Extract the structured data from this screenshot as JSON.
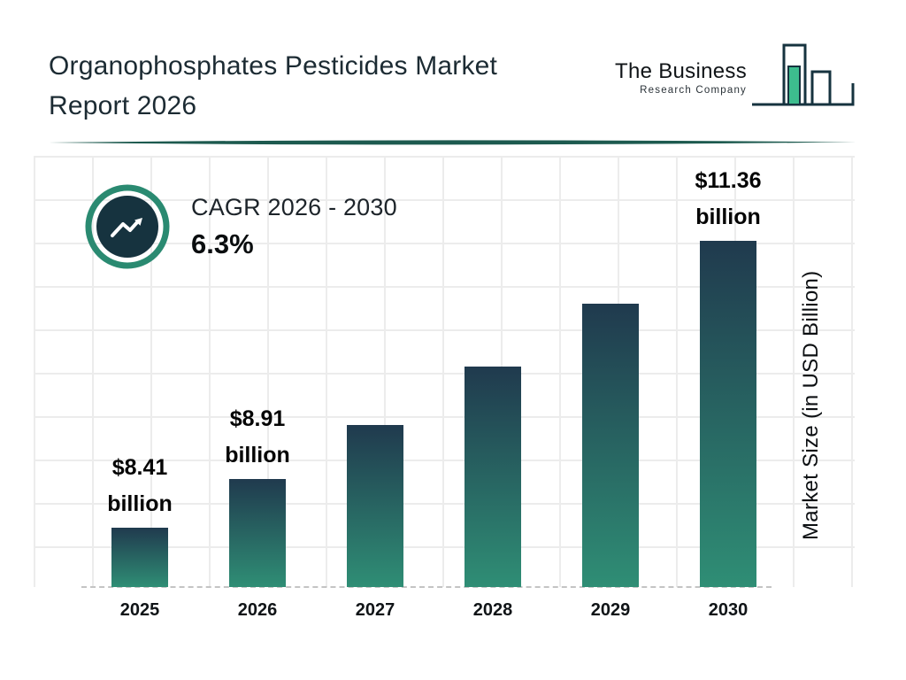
{
  "header": {
    "title_line1": "Organophosphates Pesticides Market",
    "title_line2": "Report 2026",
    "logo_line1": "The Business",
    "logo_line2": "Research Company"
  },
  "cagr": {
    "label": "CAGR 2026 - 2030",
    "value": "6.3%"
  },
  "chart_data": {
    "type": "bar",
    "title": "Organophosphates Pesticides Market Report 2026",
    "categories": [
      "2025",
      "2026",
      "2027",
      "2028",
      "2029",
      "2030"
    ],
    "values": [
      8.41,
      8.91,
      9.47,
      10.07,
      10.71,
      11.36
    ],
    "bar_labels": [
      {
        "line1": "$8.41",
        "line2": "billion"
      },
      {
        "line1": "$8.91",
        "line2": "billion"
      },
      null,
      null,
      null,
      {
        "line1": "$11.36",
        "line2": "billion"
      }
    ],
    "xlabel": "",
    "ylabel": "Market Size (in USD Billion)",
    "ylim": [
      7.8,
      11.6
    ],
    "grid": true,
    "legend": false,
    "cagr_label": "CAGR 2026 - 2030",
    "cagr_value": "6.3%"
  },
  "colors": {
    "bar_gradient_top": "#203a4e",
    "bar_gradient_bottom": "#2f8e75",
    "accent_teal": "#2a8a71",
    "dark_navy": "#16333f",
    "divider_teal": "#1d5a4f",
    "logo_green": "#3dbd8e",
    "grid_gray": "#ececec"
  }
}
